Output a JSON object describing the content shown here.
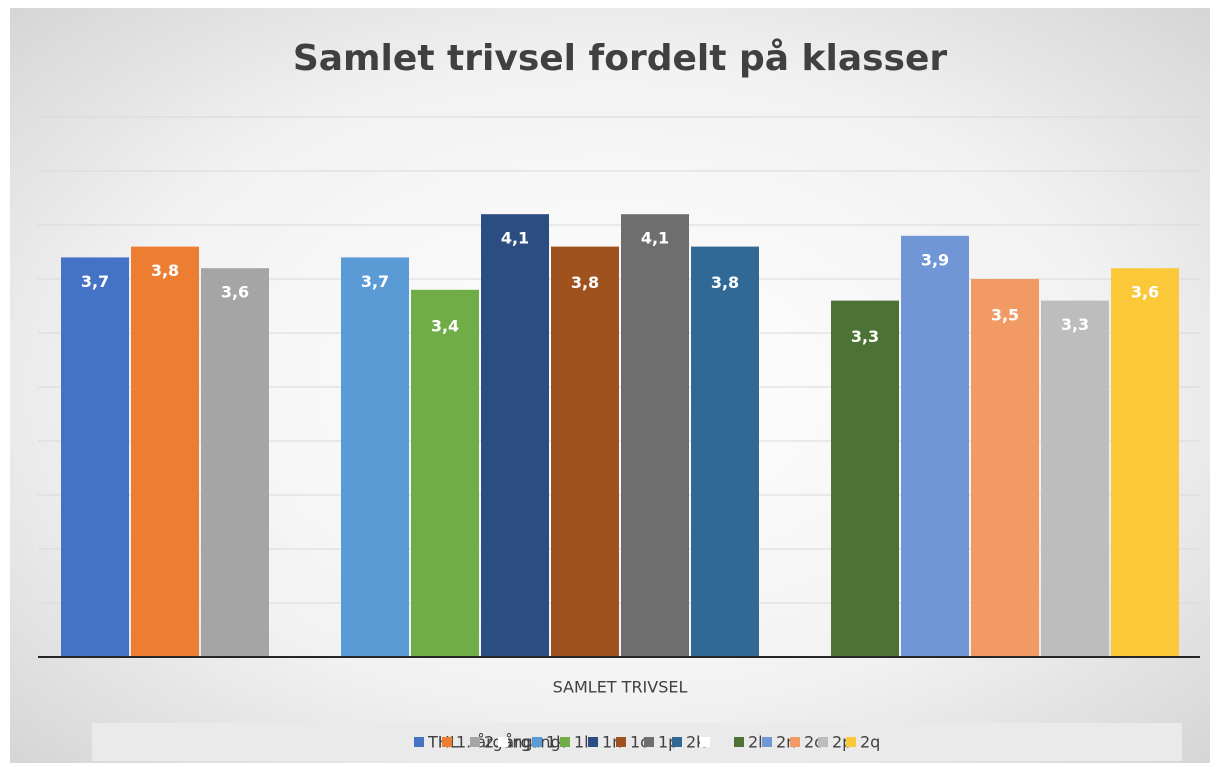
{
  "chart_data": {
    "type": "bar",
    "title": "Samlet trivsel fordelt på klasser",
    "categories": [
      "SAMLET TRIVSEL"
    ],
    "ylim": [
      0,
      5
    ],
    "yticks": [
      0,
      0.5,
      1,
      1.5,
      2,
      2.5,
      3,
      3.5,
      4,
      4.5,
      5
    ],
    "grid": true,
    "legend": "bottom",
    "series": [
      {
        "name": "THL",
        "color": "#4472c4",
        "values": [
          3.7
        ],
        "value_labels": [
          "3,7"
        ]
      },
      {
        "name": "1. årgang",
        "color": "#ed7d31",
        "values": [
          3.8
        ],
        "value_labels": [
          "3,8"
        ]
      },
      {
        "name": "2. årgang",
        "color": "#a5a5a5",
        "values": [
          3.6
        ],
        "value_labels": [
          "3,6"
        ]
      },
      {
        "name": "1k",
        "color": "#5b9bd5",
        "values": [
          3.7
        ],
        "value_labels": [
          "3,7"
        ]
      },
      {
        "name": "1l",
        "color": "#70ad47",
        "values": [
          3.4
        ],
        "value_labels": [
          "3,4"
        ]
      },
      {
        "name": "1n",
        "color": "#2c4d82",
        "values": [
          4.1
        ],
        "value_labels": [
          "4,1"
        ]
      },
      {
        "name": "1o",
        "color": "#a0521e",
        "values": [
          3.8
        ],
        "value_labels": [
          "3,8"
        ]
      },
      {
        "name": "1p",
        "color": "#6e6e6e",
        "values": [
          4.1
        ],
        "value_labels": [
          "4,1"
        ]
      },
      {
        "name": "2k",
        "color": "#306896",
        "values": [
          3.8
        ],
        "value_labels": [
          "3,8"
        ]
      },
      {
        "name": "2l",
        "color": "#4c7335",
        "values": [
          3.3
        ],
        "value_labels": [
          "3,3"
        ]
      },
      {
        "name": "2n",
        "color": "#7096d6",
        "values": [
          3.9
        ],
        "value_labels": [
          "3,9"
        ]
      },
      {
        "name": "2o",
        "color": "#f19a64",
        "values": [
          3.5
        ],
        "value_labels": [
          "3,5"
        ]
      },
      {
        "name": "2p",
        "color": "#bdbdbd",
        "values": [
          3.3
        ],
        "value_labels": [
          "3,3"
        ]
      },
      {
        "name": "2q",
        "color": "#fbc83a",
        "values": [
          3.6
        ],
        "value_labels": [
          "3,6"
        ]
      }
    ]
  }
}
